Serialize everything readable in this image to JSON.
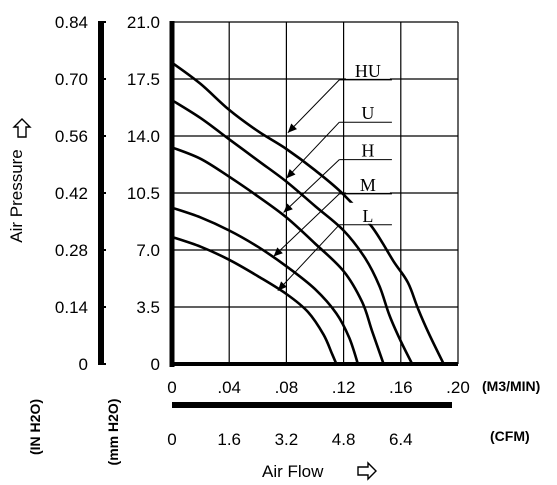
{
  "chart_data": {
    "type": "line",
    "xlabel": "Air Flow",
    "ylabel": "Air Pressure",
    "x_units_primary": "(M3/MIN)",
    "x_units_secondary": "(CFM)",
    "y_units_inner": "(mm H2O)",
    "y_units_outer": "(IN H2O)",
    "x_ticks_primary": [
      "0",
      ".04",
      ".08",
      ".12",
      ".16",
      ".20"
    ],
    "x_ticks_secondary": [
      "0",
      "1.6",
      "3.2",
      "4.8",
      "6.4"
    ],
    "y_ticks_inner": [
      "0",
      "3.5",
      "7.0",
      "10.5",
      "14.0",
      "17.5",
      "21.0"
    ],
    "y_ticks_outer": [
      "0",
      "0.14",
      "0.28",
      "0.42",
      "0.56",
      "0.70",
      "0.84"
    ],
    "xlim": [
      0,
      0.2
    ],
    "ylim": [
      0,
      21
    ],
    "grid": true,
    "series": [
      {
        "name": "HU",
        "points": [
          [
            0,
            18.5
          ],
          [
            0.02,
            17.2
          ],
          [
            0.04,
            15.6
          ],
          [
            0.06,
            14.3
          ],
          [
            0.08,
            13.2
          ],
          [
            0.1,
            11.9
          ],
          [
            0.12,
            10.4
          ],
          [
            0.14,
            8.4
          ],
          [
            0.155,
            6.3
          ],
          [
            0.165,
            5.0
          ],
          [
            0.172,
            3.4
          ],
          [
            0.18,
            1.8
          ],
          [
            0.19,
            0
          ]
        ]
      },
      {
        "name": "U",
        "points": [
          [
            0,
            16.2
          ],
          [
            0.02,
            15.1
          ],
          [
            0.04,
            13.8
          ],
          [
            0.06,
            12.5
          ],
          [
            0.08,
            11.2
          ],
          [
            0.1,
            9.7
          ],
          [
            0.12,
            8.2
          ],
          [
            0.135,
            6.5
          ],
          [
            0.145,
            4.8
          ],
          [
            0.152,
            3.0
          ],
          [
            0.16,
            1.4
          ],
          [
            0.168,
            0
          ]
        ]
      },
      {
        "name": "H",
        "points": [
          [
            0,
            13.3
          ],
          [
            0.02,
            12.6
          ],
          [
            0.04,
            11.5
          ],
          [
            0.06,
            10.3
          ],
          [
            0.08,
            9.0
          ],
          [
            0.1,
            7.4
          ],
          [
            0.12,
            5.7
          ],
          [
            0.133,
            3.8
          ],
          [
            0.14,
            2.0
          ],
          [
            0.148,
            0
          ]
        ]
      },
      {
        "name": "M",
        "points": [
          [
            0,
            9.6
          ],
          [
            0.02,
            9.0
          ],
          [
            0.04,
            8.2
          ],
          [
            0.06,
            7.2
          ],
          [
            0.08,
            6.0
          ],
          [
            0.1,
            4.6
          ],
          [
            0.115,
            3.1
          ],
          [
            0.124,
            1.6
          ],
          [
            0.13,
            0
          ]
        ]
      },
      {
        "name": "L",
        "points": [
          [
            0,
            7.8
          ],
          [
            0.02,
            7.2
          ],
          [
            0.04,
            6.4
          ],
          [
            0.06,
            5.4
          ],
          [
            0.08,
            4.3
          ],
          [
            0.095,
            3.2
          ],
          [
            0.106,
            1.8
          ],
          [
            0.112,
            0.6
          ],
          [
            0.115,
            0
          ]
        ]
      }
    ],
    "legend": [
      {
        "label": "HU",
        "target": [
          0.081,
          14.2
        ]
      },
      {
        "label": "U",
        "target": [
          0.08,
          11.4
        ]
      },
      {
        "label": "H",
        "target": [
          0.078,
          9.3
        ]
      },
      {
        "label": "M",
        "target": [
          0.071,
          6.6
        ]
      },
      {
        "label": "L",
        "target": [
          0.074,
          4.5
        ]
      }
    ]
  }
}
